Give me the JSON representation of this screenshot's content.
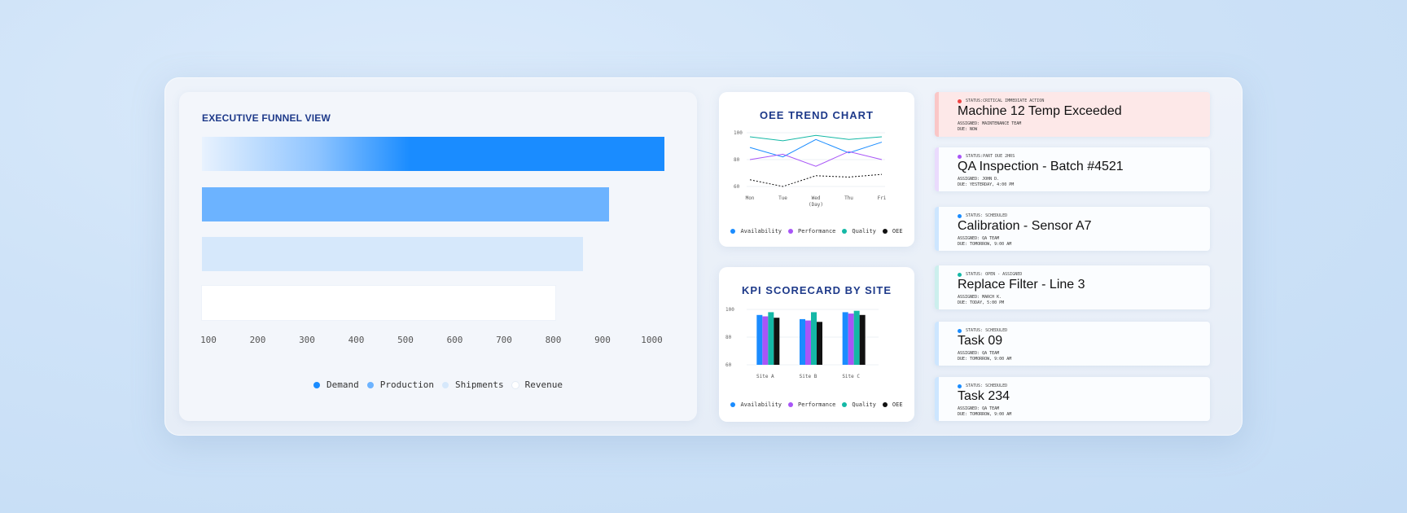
{
  "funnel": {
    "title": "EXECUTIVE FUNNEL VIEW",
    "ticks": [
      "100",
      "200",
      "300",
      "400",
      "500",
      "600",
      "700",
      "800",
      "900",
      "1000"
    ],
    "legend": [
      {
        "label": "Demand",
        "color": "#1a8cff"
      },
      {
        "label": "Production",
        "color": "#6cb3ff"
      },
      {
        "label": "Shipments",
        "color": "#d6e8fb"
      },
      {
        "label": "Revenue",
        "color": "#ffffff"
      }
    ]
  },
  "oee": {
    "title": "OEE TREND CHART",
    "xlabel": "(Day)",
    "legend": [
      {
        "label": "Availability",
        "color": "#1a8cff"
      },
      {
        "label": "Performance",
        "color": "#a855f7"
      },
      {
        "label": "Quality",
        "color": "#14b8a6"
      },
      {
        "label": "OEE",
        "color": "#111111"
      }
    ]
  },
  "kpi": {
    "title": "KPI SCORECARD BY SITE",
    "legend": [
      {
        "label": "Availability",
        "color": "#1a8cff"
      },
      {
        "label": "Performance",
        "color": "#a855f7"
      },
      {
        "label": "Quality",
        "color": "#14b8a6"
      },
      {
        "label": "OEE",
        "color": "#111111"
      }
    ]
  },
  "chart_data": [
    {
      "type": "bar",
      "title": "EXECUTIVE FUNNEL VIEW",
      "orientation": "horizontal",
      "categories": [
        "Demand",
        "Production",
        "Shipments",
        "Revenue"
      ],
      "values": [
        1010,
        900,
        850,
        795
      ],
      "xlim": [
        100,
        1000
      ]
    },
    {
      "type": "line",
      "title": "OEE TREND CHART",
      "x": [
        "Mon",
        "Tue",
        "Wed",
        "Thu",
        "Fri"
      ],
      "xlabel": "(Day)",
      "ylim": [
        60,
        100
      ],
      "yticks": [
        "60",
        "80",
        "100"
      ],
      "series": [
        {
          "name": "Availability",
          "values": [
            89,
            82,
            95,
            85,
            93
          ],
          "color": "#1a8cff"
        },
        {
          "name": "Performance",
          "values": [
            80,
            84,
            75,
            86,
            80
          ],
          "color": "#a855f7"
        },
        {
          "name": "Quality",
          "values": [
            97,
            94,
            98,
            95,
            97
          ],
          "color": "#14b8a6"
        },
        {
          "name": "OEE",
          "values": [
            65,
            60,
            68,
            67,
            69
          ],
          "color": "#111111"
        }
      ]
    },
    {
      "type": "bar",
      "title": "KPI SCORECARD BY SITE",
      "categories": [
        "Site A",
        "Site B",
        "Site C"
      ],
      "ylim": [
        60,
        100
      ],
      "yticks": [
        "60",
        "80",
        "100"
      ],
      "series": [
        {
          "name": "Availability",
          "values": [
            96,
            93,
            98
          ],
          "color": "#1a8cff"
        },
        {
          "name": "Performance",
          "values": [
            95,
            92,
            97
          ],
          "color": "#a855f7"
        },
        {
          "name": "Quality",
          "values": [
            98,
            98,
            99
          ],
          "color": "#14b8a6"
        },
        {
          "name": "OEE",
          "values": [
            94,
            91,
            96
          ],
          "color": "#111111"
        }
      ]
    }
  ],
  "tasks": [
    {
      "status": "STATUS:CRITICAL IMMEDIATE ACTION",
      "title": "Machine 12 Temp Exceeded",
      "assigned": "ASSIGNED: MAINTENANCE TEAM",
      "due": "DUE: NOW",
      "color": "#ef4444",
      "bg": "#fde8e8"
    },
    {
      "status": "STATUS:PART DUE 2HRS",
      "title": "QA Inspection - Batch #4521",
      "assigned": "ASSIGNED: JOHN D.",
      "due": "DUE: YESTERDAY, 4:00 PM",
      "color": "#a855f7",
      "bg": "#fbfdff"
    },
    {
      "status": "STATUS: SCHEDULED",
      "title": "Calibration - Sensor A7",
      "assigned": "ASSIGNED: QA TEAM",
      "due": "DUE: TOMORROW, 9:00 AM",
      "color": "#1a8cff",
      "bg": "#fbfdff"
    },
    {
      "status": "STATUS: OPEN - ASSIGNED",
      "title": "Replace Filter - Line 3",
      "assigned": "ASSIGNED: MARCH K.",
      "due": "DUE: TODAY, 5:00 PM",
      "color": "#14b8a6",
      "bg": "#fbfdff"
    },
    {
      "status": "STATUS: SCHEDULED",
      "title": "Task 09",
      "assigned": "ASSIGNED: QA TEAM",
      "due": "DUE: TOMORROW, 9:00 AM",
      "color": "#1a8cff",
      "bg": "#fbfdff"
    },
    {
      "status": "STATUS: SCHEDULED",
      "title": "Task 234",
      "assigned": "ASSIGNED: QA TEAM",
      "due": "DUE: TOMORROW, 9:00 AM",
      "color": "#1a8cff",
      "bg": "#fbfdff"
    }
  ]
}
